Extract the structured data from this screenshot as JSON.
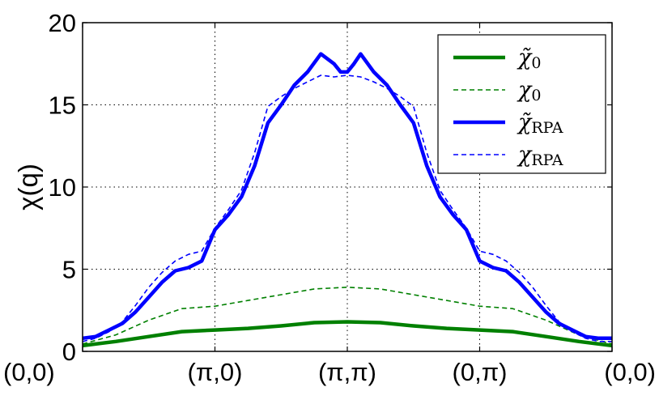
{
  "chart_data": {
    "type": "line",
    "title": "",
    "xlabel": "",
    "ylabel": "χ(q)",
    "ylim": [
      0,
      20
    ],
    "xlim": [
      0,
      4
    ],
    "yticks": [
      0,
      5,
      10,
      15,
      20
    ],
    "xticks": [
      0,
      1,
      2,
      3,
      4
    ],
    "xtick_labels": [
      "(0,0)",
      "(π,0)",
      "(π,π)",
      "(0,π)",
      "(0,0)"
    ],
    "grid": true,
    "legend_position": "top-right",
    "series": [
      {
        "name": "χ̃0",
        "legend_main": "χ̃",
        "legend_sub": "0",
        "color": "#008000",
        "style": "solid",
        "x": [
          0,
          0.25,
          0.5,
          0.75,
          1,
          1.25,
          1.5,
          1.75,
          2,
          2.25,
          2.5,
          2.75,
          3,
          3.25,
          3.5,
          3.75,
          4
        ],
        "y": [
          0.35,
          0.6,
          0.9,
          1.2,
          1.3,
          1.4,
          1.55,
          1.75,
          1.8,
          1.75,
          1.55,
          1.4,
          1.3,
          1.2,
          0.9,
          0.6,
          0.35
        ]
      },
      {
        "name": "χ0",
        "legend_main": "χ",
        "legend_sub": "0",
        "color": "#008000",
        "style": "dashed",
        "x": [
          0,
          0.25,
          0.5,
          0.75,
          1,
          1.25,
          1.5,
          1.75,
          2,
          2.25,
          2.5,
          2.75,
          3,
          3.25,
          3.5,
          3.75,
          4
        ],
        "y": [
          0.45,
          1.0,
          1.9,
          2.6,
          2.75,
          3.1,
          3.45,
          3.8,
          3.9,
          3.8,
          3.45,
          3.1,
          2.75,
          2.6,
          1.9,
          1.0,
          0.45
        ]
      },
      {
        "name": "χ̃RPA",
        "legend_main": "χ̃",
        "legend_sub": "RPA",
        "color": "#0000ff",
        "style": "solid",
        "x": [
          0,
          0.1,
          0.2,
          0.3,
          0.4,
          0.5,
          0.6,
          0.7,
          0.8,
          0.9,
          1.0,
          1.1,
          1.2,
          1.3,
          1.4,
          1.5,
          1.6,
          1.7,
          1.8,
          1.9,
          1.95,
          2.0,
          2.05,
          2.1,
          2.2,
          2.3,
          2.4,
          2.5,
          2.6,
          2.7,
          2.8,
          2.9,
          3.0,
          3.1,
          3.2,
          3.3,
          3.4,
          3.5,
          3.6,
          3.7,
          3.8,
          3.9,
          4.0
        ],
        "y": [
          0.8,
          0.9,
          1.3,
          1.7,
          2.4,
          3.3,
          4.2,
          4.9,
          5.1,
          5.5,
          7.4,
          8.3,
          9.4,
          11.3,
          13.9,
          15.0,
          16.2,
          17.0,
          18.1,
          17.5,
          17.0,
          17.0,
          17.5,
          18.1,
          17.0,
          16.2,
          15.0,
          13.9,
          11.3,
          9.4,
          8.3,
          7.4,
          5.5,
          5.1,
          4.9,
          4.2,
          3.3,
          2.4,
          1.7,
          1.3,
          0.9,
          0.8,
          0.8
        ]
      },
      {
        "name": "χRPA",
        "legend_main": "χ",
        "legend_sub": "RPA",
        "color": "#0000ff",
        "style": "dashed",
        "x": [
          0,
          0.1,
          0.2,
          0.3,
          0.4,
          0.5,
          0.6,
          0.7,
          0.8,
          0.9,
          1.0,
          1.1,
          1.2,
          1.3,
          1.4,
          1.5,
          1.6,
          1.7,
          1.8,
          1.9,
          2.0,
          2.1,
          2.2,
          2.3,
          2.4,
          2.5,
          2.6,
          2.7,
          2.8,
          2.9,
          3.0,
          3.1,
          3.2,
          3.3,
          3.4,
          3.5,
          3.6,
          3.7,
          3.8,
          3.9,
          4.0
        ],
        "y": [
          0.6,
          0.8,
          1.2,
          1.8,
          2.8,
          3.9,
          4.8,
          5.5,
          5.9,
          6.1,
          7.5,
          8.6,
          9.8,
          12.1,
          14.9,
          15.5,
          16.0,
          16.4,
          16.8,
          16.7,
          16.8,
          16.7,
          16.4,
          16.0,
          15.5,
          14.9,
          12.1,
          9.8,
          8.6,
          7.5,
          6.1,
          5.9,
          5.5,
          4.8,
          3.9,
          2.8,
          1.8,
          1.2,
          0.8,
          0.6,
          0.6
        ]
      }
    ]
  }
}
